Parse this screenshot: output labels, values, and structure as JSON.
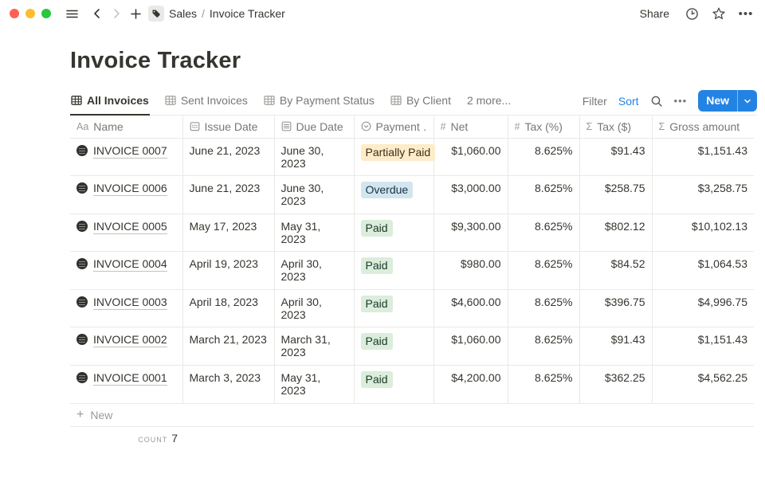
{
  "window": {
    "breadcrumb": {
      "section": "Sales",
      "separator": "/",
      "page": "Invoice Tracker"
    },
    "share_label": "Share"
  },
  "page": {
    "title": "Invoice Tracker"
  },
  "tabs": [
    {
      "label": "All Invoices",
      "active": true
    },
    {
      "label": "Sent Invoices",
      "active": false
    },
    {
      "label": "By Payment Status",
      "active": false
    },
    {
      "label": "By Client",
      "active": false
    },
    {
      "label": "2 more...",
      "active": false
    }
  ],
  "toolbar": {
    "filter_label": "Filter",
    "sort_label": "Sort",
    "new_label": "New"
  },
  "table": {
    "columns": [
      {
        "label": "Name",
        "icon": "text-icon"
      },
      {
        "label": "Issue Date",
        "icon": "calendar-icon"
      },
      {
        "label": "Due Date",
        "icon": "lines-icon"
      },
      {
        "label": "Payment …",
        "icon": "select-icon"
      },
      {
        "label": "Net",
        "icon": "hash-icon"
      },
      {
        "label": "Tax (%)",
        "icon": "hash-icon"
      },
      {
        "label": "Tax ($)",
        "icon": "sigma-icon"
      },
      {
        "label": "Gross amount",
        "icon": "sigma-icon"
      }
    ],
    "rows": [
      {
        "name": "INVOICE 0007",
        "issue_date": "June 21, 2023",
        "due_date": "June 30, 2023",
        "payment_status": "Partially Paid",
        "net": "$1,060.00",
        "tax_pct": "8.625%",
        "tax_usd": "$91.43",
        "gross": "$1,151.43",
        "tall": false
      },
      {
        "name": "INVOICE 0006",
        "issue_date": "June 21, 2023",
        "due_date": "June 30, 2023",
        "payment_status": "Overdue",
        "net": "$3,000.00",
        "tax_pct": "8.625%",
        "tax_usd": "$258.75",
        "gross": "$3,258.75",
        "tall": true
      },
      {
        "name": "INVOICE 0005",
        "issue_date": "May 17, 2023",
        "due_date": "May 31, 2023",
        "payment_status": "Paid",
        "net": "$9,300.00",
        "tax_pct": "8.625%",
        "tax_usd": "$802.12",
        "gross": "$10,102.13",
        "tall": false
      },
      {
        "name": "INVOICE 0004",
        "issue_date": "April 19, 2023",
        "due_date": "April 30, 2023",
        "payment_status": "Paid",
        "net": "$980.00",
        "tax_pct": "8.625%",
        "tax_usd": "$84.52",
        "gross": "$1,064.53",
        "tall": true
      },
      {
        "name": "INVOICE 0003",
        "issue_date": "April 18, 2023",
        "due_date": "April 30, 2023",
        "payment_status": "Paid",
        "net": "$4,600.00",
        "tax_pct": "8.625%",
        "tax_usd": "$396.75",
        "gross": "$4,996.75",
        "tall": false
      },
      {
        "name": "INVOICE 0002",
        "issue_date": "March 21, 2023",
        "due_date": "March 31, 2023",
        "payment_status": "Paid",
        "net": "$1,060.00",
        "tax_pct": "8.625%",
        "tax_usd": "$91.43",
        "gross": "$1,151.43",
        "tall": true
      },
      {
        "name": "INVOICE 0001",
        "issue_date": "March 3, 2023",
        "due_date": "May 31, 2023",
        "payment_status": "Paid",
        "net": "$4,200.00",
        "tax_pct": "8.625%",
        "tax_usd": "$362.25",
        "gross": "$4,562.25",
        "tall": true
      }
    ],
    "new_row_label": "New",
    "footer": {
      "calc_label": "COUNT",
      "calc_value": "7"
    }
  },
  "badges": {
    "Partially Paid": {
      "bg": "#fdecc8",
      "text": "#402c1b"
    },
    "Overdue": {
      "bg": "#d3e5ef",
      "text": "#183347"
    },
    "Paid": {
      "bg": "#dbeddb",
      "text": "#1c3829"
    }
  },
  "colors": {
    "accent_blue": "#2383e2",
    "traffic_red": "#ff5f57",
    "traffic_yellow": "#febc2e",
    "traffic_green": "#28c840"
  }
}
